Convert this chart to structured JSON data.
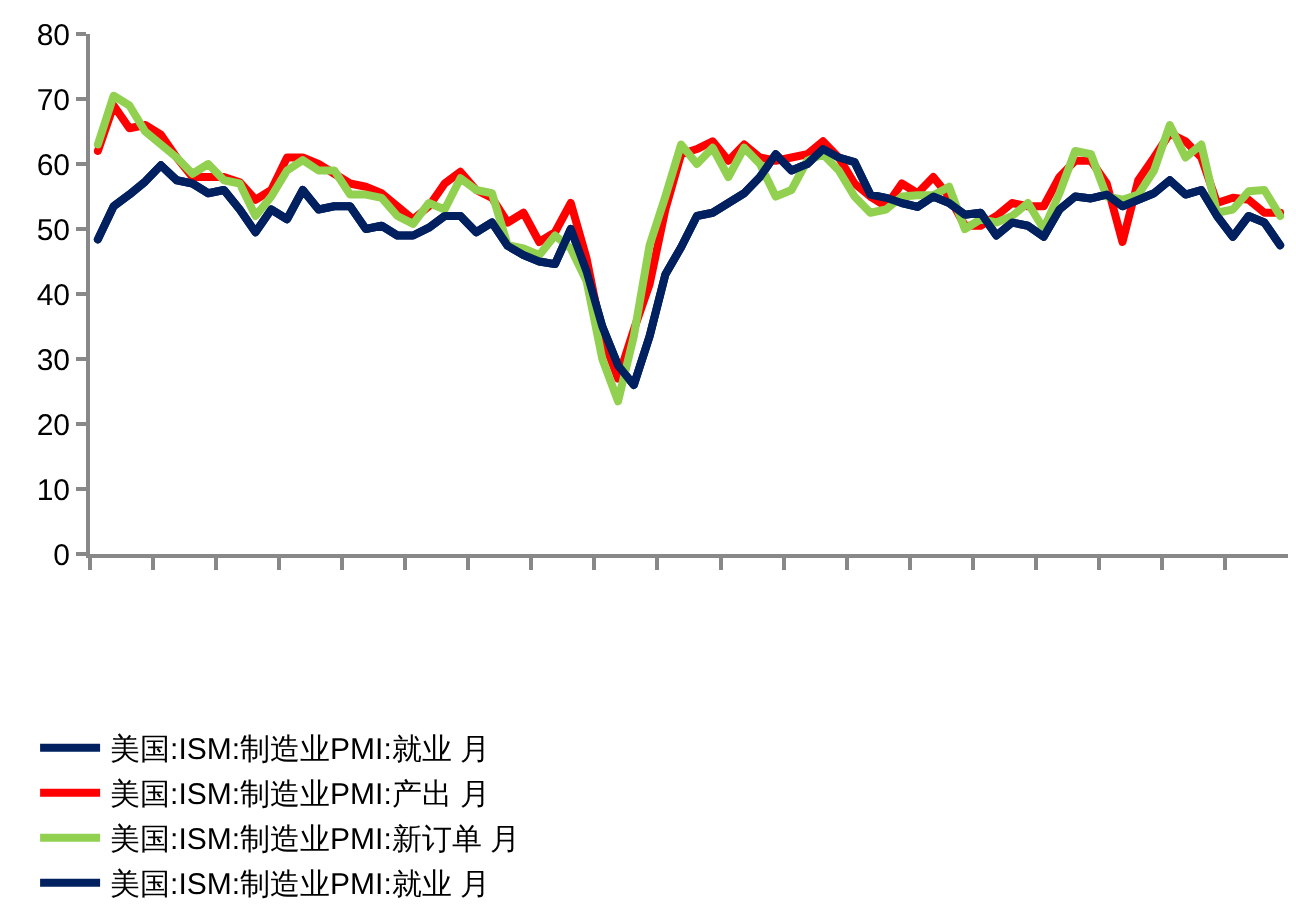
{
  "chart_data": {
    "type": "line",
    "categories": [
      null,
      null,
      null,
      null,
      null,
      null,
      null,
      null,
      null,
      null,
      null,
      null,
      null,
      null,
      null,
      null,
      null,
      null,
      null,
      null,
      null,
      null,
      null,
      null,
      null,
      null,
      null,
      null,
      null,
      null,
      null,
      null,
      null,
      null,
      null,
      null,
      null,
      null,
      null,
      null,
      null,
      null,
      null,
      null,
      null,
      null,
      null,
      null,
      null,
      null,
      null,
      null,
      null,
      null,
      null,
      null,
      null,
      null,
      null,
      null,
      null,
      null,
      null,
      null,
      null,
      null,
      null,
      null,
      null,
      null,
      null,
      null,
      null,
      null,
      null,
      null
    ],
    "series": [
      {
        "name": "美国:ISM:制造业PMI:就业 月",
        "color": "#002060",
        "values": [
          48.4,
          53.5,
          55.3,
          57.3,
          59.8,
          57.5,
          57,
          55.5,
          56,
          53,
          49.5,
          53,
          51.5,
          56,
          53,
          53.5,
          53.5,
          50,
          50.5,
          49,
          49,
          50.2,
          52,
          52,
          49.5,
          51,
          47.4,
          46,
          45,
          44.6,
          50,
          43.5,
          35,
          29,
          26,
          33.5,
          43,
          47.2,
          52,
          52.5,
          54,
          55.5,
          58,
          61.5,
          59,
          60,
          62.3,
          61,
          60.3,
          55.3,
          54.8,
          54,
          53.4,
          55,
          54,
          52.2,
          52.5,
          49,
          51,
          50.5,
          48.8,
          53,
          55,
          54.7,
          55.3,
          53.5,
          54.5,
          55.5,
          57.5,
          55.3,
          56,
          52,
          48.8,
          52,
          51,
          47.5
        ]
      },
      {
        "name": "美国:ISM:制造业PMI:产出 月",
        "color": "#ff0000",
        "values": [
          62,
          69,
          65.5,
          66,
          64.5,
          61,
          58,
          58,
          58,
          57.2,
          54.5,
          56,
          61,
          61,
          60,
          58.5,
          57,
          56.5,
          55.5,
          53.5,
          51.5,
          53.5,
          57,
          58.8,
          56,
          54.8,
          51,
          52.5,
          48,
          49.5,
          54,
          45.5,
          33.5,
          27,
          34.5,
          41.5,
          53,
          61.5,
          62.3,
          63.5,
          60.5,
          63,
          61,
          60.5,
          61,
          61.5,
          63.5,
          61,
          57,
          55,
          53.5,
          57,
          55.5,
          58,
          55,
          50.5,
          50.5,
          52,
          54,
          53.5,
          53.5,
          58,
          60.5,
          60.5,
          57,
          48,
          57.5,
          61,
          64.7,
          63.5,
          61,
          54,
          54.8,
          54.5,
          52.5,
          52.5
        ]
      },
      {
        "name": "美国:ISM:制造业PMI:新订单 月",
        "color": "#92d050",
        "values": [
          63,
          70.5,
          69,
          65,
          63,
          61,
          58.5,
          60,
          57.5,
          57,
          52,
          55,
          59,
          60.6,
          59,
          59,
          55.3,
          55.3,
          54.8,
          52,
          50.8,
          54,
          53,
          57.8,
          56,
          55.5,
          47.5,
          47,
          46,
          49,
          47,
          42,
          30,
          23.5,
          33.5,
          47.5,
          55,
          63,
          60,
          62.5,
          58,
          62.5,
          60,
          55,
          56,
          60.5,
          61.5,
          59,
          55,
          52.5,
          53,
          55,
          55.2,
          55.2,
          56.5,
          50,
          51.5,
          51,
          52,
          54,
          50,
          55.5,
          62,
          61.5,
          55,
          54.5,
          55.3,
          59,
          66,
          61,
          63,
          52.5,
          53,
          55.8,
          56,
          52
        ]
      },
      {
        "name": "美国:ISM:制造业PMI:就业 月",
        "color": "#002060",
        "values": [
          48.4,
          53.5,
          55.3,
          57.3,
          59.8,
          57.5,
          57,
          55.5,
          56,
          53,
          49.5,
          53,
          51.5,
          56,
          53,
          53.5,
          53.5,
          50,
          50.5,
          49,
          49,
          50.2,
          52,
          52,
          49.5,
          51,
          47.4,
          46,
          45,
          44.6,
          50,
          43.5,
          35,
          29,
          26,
          33.5,
          43,
          47.2,
          52,
          52.5,
          54,
          55.5,
          58,
          61.5,
          59,
          60,
          62.3,
          61,
          60.3,
          55.3,
          54.8,
          54,
          53.4,
          55,
          54,
          52.2,
          52.5,
          49,
          51,
          50.5,
          48.8,
          53,
          55,
          54.7,
          55.3,
          53.5,
          54.5,
          55.5,
          57.5,
          55.3,
          56,
          52,
          48.8,
          52,
          51,
          47.5
        ]
      }
    ],
    "ylim": [
      0,
      80
    ],
    "yticks": [
      0,
      10,
      20,
      30,
      40,
      50,
      60,
      70,
      80
    ],
    "grid": false,
    "legend": "bottom",
    "tick_labels": "y",
    "marker": "none",
    "line_style": "solid"
  }
}
